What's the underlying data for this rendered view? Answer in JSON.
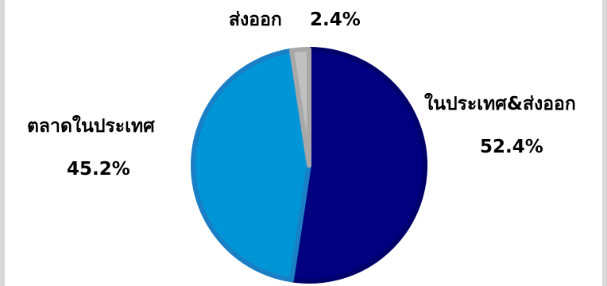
{
  "chart_data": {
    "type": "pie",
    "title": "",
    "start_angle_deg": 0,
    "direction": "clockwise",
    "slices": [
      {
        "label": "ในประเทศ&ส่งออก",
        "value": 52.4,
        "value_label": "52.4%",
        "color": "#000080"
      },
      {
        "label": "ตลาดในประเทศ",
        "value": 45.2,
        "value_label": "45.2%",
        "color": "#0095d6"
      },
      {
        "label": "ส่งออก",
        "value": 2.4,
        "value_label": "2.4%",
        "color": "#c0c0c0"
      }
    ],
    "legend": "none"
  }
}
